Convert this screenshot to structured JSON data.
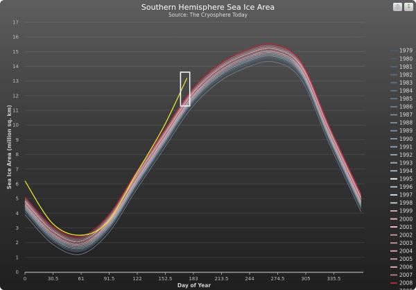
{
  "toolbar": {
    "print_icon": "printer-icon",
    "export_icon": "download-icon"
  },
  "chart_data": {
    "type": "line",
    "title": "Southern Hemisphere Sea Ice Area",
    "subtitle": "Source: The Cryosphere Today",
    "xlabel": "Day of Year",
    "ylabel": "Sea Ice Area (million sq. km)",
    "xlim": [
      0,
      366
    ],
    "ylim": [
      0,
      17
    ],
    "x_ticks": [
      "0",
      "30.5",
      "61",
      "91.5",
      "122",
      "152.5",
      "183",
      "213.5",
      "244",
      "274.5",
      "305",
      "335.5"
    ],
    "x_tick_values": [
      0,
      30.5,
      61,
      91.5,
      122,
      152.5,
      183,
      213.5,
      244,
      274.5,
      305,
      335.5
    ],
    "y_ticks": [
      0,
      1,
      2,
      3,
      4,
      5,
      6,
      7,
      8,
      9,
      10,
      11,
      12,
      13,
      14,
      15,
      16,
      17
    ],
    "grid": true,
    "legend_placement": "right",
    "days": [
      0,
      30,
      60,
      90,
      120,
      150,
      180,
      210,
      240,
      270,
      300,
      330,
      365
    ],
    "series": [
      {
        "name": "1979",
        "color": "#4a5a68",
        "values": [
          4.3,
          2.3,
          1.6,
          3.0,
          5.9,
          8.7,
          11.5,
          13.3,
          14.3,
          14.7,
          13.5,
          9.2,
          4.5
        ]
      },
      {
        "name": "1980",
        "color": "#4e5e6c",
        "values": [
          4.2,
          2.2,
          1.5,
          2.9,
          5.8,
          8.6,
          11.4,
          13.2,
          14.2,
          14.6,
          13.4,
          9.1,
          4.4
        ]
      },
      {
        "name": "1981",
        "color": "#546472",
        "values": [
          4.1,
          2.1,
          1.4,
          2.8,
          5.7,
          8.5,
          11.3,
          13.1,
          14.1,
          14.5,
          13.3,
          9.0,
          4.3
        ]
      },
      {
        "name": "1982",
        "color": "#586878",
        "values": [
          4.3,
          2.3,
          1.6,
          3.0,
          5.9,
          8.7,
          11.5,
          13.3,
          14.3,
          14.7,
          13.5,
          9.2,
          4.5
        ]
      },
      {
        "name": "1983",
        "color": "#5c6c7c",
        "values": [
          4.4,
          2.4,
          1.7,
          3.1,
          6.0,
          8.8,
          11.6,
          13.4,
          14.4,
          14.8,
          13.6,
          9.3,
          4.6
        ]
      },
      {
        "name": "1984",
        "color": "#627282",
        "values": [
          4.2,
          2.2,
          1.5,
          2.9,
          5.8,
          8.6,
          11.4,
          13.2,
          14.2,
          14.6,
          13.4,
          9.1,
          4.4
        ]
      },
      {
        "name": "1985",
        "color": "#687888",
        "values": [
          4.4,
          2.4,
          1.7,
          3.1,
          6.0,
          8.8,
          11.6,
          13.4,
          14.4,
          14.8,
          13.6,
          9.3,
          4.6
        ]
      },
      {
        "name": "1986",
        "color": "#6e7e8e",
        "values": [
          3.9,
          1.9,
          1.2,
          2.6,
          5.5,
          8.3,
          11.1,
          12.9,
          13.9,
          14.3,
          13.1,
          8.8,
          4.1
        ]
      },
      {
        "name": "1987",
        "color": "#748494",
        "values": [
          4.3,
          2.3,
          1.6,
          3.0,
          5.9,
          8.7,
          11.5,
          13.3,
          14.3,
          14.7,
          13.5,
          9.2,
          4.5
        ]
      },
      {
        "name": "1988",
        "color": "#7a8a98",
        "values": [
          4.5,
          2.5,
          1.8,
          3.2,
          6.1,
          8.9,
          11.7,
          13.5,
          14.5,
          14.9,
          13.7,
          9.4,
          4.7
        ]
      },
      {
        "name": "1989",
        "color": "#80909e",
        "values": [
          4.4,
          2.4,
          1.7,
          3.1,
          6.0,
          8.8,
          11.6,
          13.4,
          14.4,
          14.8,
          13.6,
          9.3,
          4.6
        ]
      },
      {
        "name": "1990",
        "color": "#8898a6",
        "values": [
          4.5,
          2.5,
          1.8,
          3.2,
          6.1,
          8.9,
          11.7,
          13.5,
          14.5,
          14.9,
          13.7,
          9.4,
          4.7
        ]
      },
      {
        "name": "1991",
        "color": "#8e9eac",
        "values": [
          4.3,
          2.3,
          1.6,
          3.0,
          5.9,
          8.7,
          11.5,
          13.3,
          14.3,
          14.7,
          13.5,
          9.2,
          4.5
        ]
      },
      {
        "name": "1992",
        "color": "#94a4b2",
        "values": [
          4.4,
          2.4,
          1.7,
          3.1,
          6.0,
          8.8,
          11.6,
          13.4,
          14.4,
          14.8,
          13.6,
          9.3,
          4.6
        ]
      },
      {
        "name": "1993",
        "color": "#9aaab8",
        "values": [
          4.6,
          2.6,
          1.9,
          3.3,
          6.2,
          9.0,
          11.8,
          13.6,
          14.6,
          15.0,
          13.8,
          9.5,
          4.8
        ]
      },
      {
        "name": "1994",
        "color": "#a2b2c0",
        "values": [
          4.7,
          2.7,
          2.0,
          3.4,
          6.3,
          9.1,
          11.9,
          13.7,
          14.7,
          15.1,
          13.9,
          9.6,
          4.9
        ]
      },
      {
        "name": "1995",
        "color": "#e8eef4",
        "values": [
          4.8,
          2.8,
          2.1,
          3.5,
          6.4,
          9.2,
          12.0,
          13.8,
          14.8,
          15.2,
          14.0,
          9.7,
          5.0
        ]
      },
      {
        "name": "1996",
        "color": "#b0c0cc",
        "values": [
          4.6,
          2.6,
          1.9,
          3.3,
          6.2,
          9.0,
          11.8,
          13.6,
          14.6,
          15.0,
          13.8,
          9.5,
          4.8
        ]
      },
      {
        "name": "1997",
        "color": "#d0dce6",
        "values": [
          4.5,
          2.5,
          1.8,
          3.2,
          6.1,
          8.9,
          11.7,
          13.5,
          14.5,
          14.9,
          13.7,
          9.4,
          4.7
        ]
      },
      {
        "name": "1998",
        "color": "#bccccc",
        "values": [
          4.7,
          2.7,
          2.0,
          3.4,
          6.3,
          9.1,
          11.9,
          13.7,
          14.7,
          15.1,
          13.9,
          9.6,
          4.9
        ]
      },
      {
        "name": "1999",
        "color": "#d8a8b0",
        "values": [
          4.6,
          2.6,
          1.9,
          3.3,
          6.2,
          9.0,
          11.8,
          13.6,
          14.6,
          15.0,
          13.8,
          9.5,
          4.8
        ]
      },
      {
        "name": "2000",
        "color": "#e8b4bc",
        "values": [
          4.7,
          2.7,
          2.0,
          3.4,
          6.3,
          9.1,
          11.9,
          13.7,
          14.7,
          15.1,
          13.9,
          9.6,
          4.9
        ]
      },
      {
        "name": "2001",
        "color": "#f0c0c8",
        "values": [
          4.8,
          2.8,
          2.1,
          3.5,
          6.4,
          9.2,
          12.0,
          13.8,
          14.8,
          15.2,
          14.0,
          9.7,
          5.0
        ]
      },
      {
        "name": "2002",
        "color": "#c89098",
        "values": [
          4.5,
          2.5,
          1.8,
          3.2,
          6.1,
          8.9,
          11.7,
          13.5,
          14.5,
          14.9,
          13.7,
          9.4,
          4.7
        ]
      },
      {
        "name": "2003",
        "color": "#b89098",
        "values": [
          4.8,
          2.8,
          2.1,
          3.5,
          6.4,
          9.2,
          12.0,
          13.8,
          14.8,
          15.2,
          14.0,
          9.7,
          5.0
        ]
      },
      {
        "name": "2004",
        "color": "#dca0ac",
        "values": [
          4.7,
          2.7,
          2.0,
          3.4,
          6.3,
          9.1,
          11.9,
          13.7,
          14.7,
          15.1,
          13.9,
          9.6,
          4.9
        ]
      },
      {
        "name": "2005",
        "color": "#d09aa4",
        "values": [
          4.9,
          2.9,
          2.2,
          3.6,
          6.5,
          9.3,
          12.1,
          13.9,
          14.9,
          15.3,
          14.1,
          9.8,
          5.1
        ]
      },
      {
        "name": "2006",
        "color": "#e0aab4",
        "values": [
          4.8,
          2.8,
          2.1,
          3.5,
          6.4,
          9.2,
          12.0,
          13.8,
          14.8,
          15.2,
          14.0,
          9.7,
          5.0
        ]
      },
      {
        "name": "2007",
        "color": "#a87880",
        "values": [
          5.0,
          3.0,
          2.3,
          3.7,
          6.6,
          9.4,
          12.2,
          14.0,
          15.0,
          15.4,
          14.2,
          9.9,
          5.2
        ]
      },
      {
        "name": "2008",
        "color": "#b02838",
        "values": [
          5.1,
          3.1,
          2.4,
          3.8,
          6.7,
          9.5,
          12.3,
          14.1,
          15.1,
          15.5,
          14.3,
          10.0,
          5.3
        ]
      },
      {
        "name": "2009",
        "color": "#906068",
        "values": [
          4.7,
          2.7,
          2.0,
          3.4,
          6.3,
          9.1,
          11.9,
          13.7,
          14.7,
          15.1,
          13.9,
          9.6,
          4.9
        ]
      }
    ],
    "highlight_series": {
      "color": "#e8e030",
      "days": [
        0,
        30,
        60,
        90,
        120,
        150,
        176
      ],
      "values": [
        6.2,
        3.3,
        2.5,
        3.4,
        6.6,
        9.8,
        13.2
      ]
    },
    "selection_box": {
      "day_range": [
        169,
        179
      ],
      "value_range": [
        11.3,
        13.6
      ]
    }
  }
}
